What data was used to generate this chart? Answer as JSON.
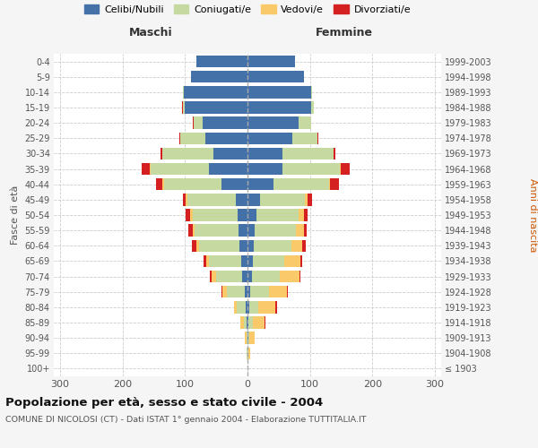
{
  "age_groups": [
    "100+",
    "95-99",
    "90-94",
    "85-89",
    "80-84",
    "75-79",
    "70-74",
    "65-69",
    "60-64",
    "55-59",
    "50-54",
    "45-49",
    "40-44",
    "35-39",
    "30-34",
    "25-29",
    "20-24",
    "15-19",
    "10-14",
    "5-9",
    "0-4"
  ],
  "birth_years": [
    "≤ 1903",
    "1904-1908",
    "1909-1913",
    "1914-1918",
    "1919-1923",
    "1924-1928",
    "1929-1933",
    "1934-1938",
    "1939-1943",
    "1944-1948",
    "1949-1953",
    "1954-1958",
    "1959-1963",
    "1964-1968",
    "1969-1973",
    "1974-1978",
    "1979-1983",
    "1984-1988",
    "1989-1993",
    "1994-1998",
    "1999-2003"
  ],
  "maschi_celibi": [
    0,
    0,
    0,
    1,
    3,
    5,
    8,
    10,
    13,
    14,
    16,
    18,
    42,
    62,
    55,
    68,
    72,
    100,
    102,
    91,
    82
  ],
  "maschi_coniugati": [
    0,
    1,
    2,
    5,
    14,
    28,
    42,
    52,
    65,
    70,
    72,
    78,
    92,
    93,
    82,
    40,
    14,
    4,
    2,
    0,
    0
  ],
  "maschi_vedovi": [
    0,
    1,
    3,
    5,
    5,
    7,
    8,
    4,
    4,
    4,
    4,
    3,
    2,
    1,
    0,
    0,
    0,
    0,
    0,
    0,
    0
  ],
  "maschi_divorziati": [
    0,
    0,
    0,
    0,
    0,
    1,
    2,
    5,
    7,
    7,
    7,
    5,
    10,
    14,
    2,
    1,
    1,
    1,
    0,
    0,
    0
  ],
  "femmine_nubili": [
    0,
    0,
    1,
    1,
    3,
    5,
    7,
    9,
    10,
    12,
    14,
    20,
    42,
    56,
    56,
    72,
    82,
    102,
    102,
    90,
    76
  ],
  "femmine_coniugate": [
    0,
    1,
    2,
    8,
    14,
    30,
    44,
    50,
    60,
    65,
    68,
    72,
    88,
    92,
    82,
    40,
    20,
    4,
    2,
    0,
    0
  ],
  "femmine_vedove": [
    0,
    3,
    8,
    18,
    28,
    28,
    32,
    26,
    18,
    14,
    9,
    4,
    2,
    1,
    0,
    0,
    0,
    0,
    0,
    0,
    0
  ],
  "femmine_divorziate": [
    0,
    0,
    1,
    1,
    2,
    2,
    2,
    2,
    5,
    4,
    5,
    8,
    14,
    14,
    3,
    1,
    0,
    0,
    0,
    0,
    0
  ],
  "colors": {
    "celibi": "#4472a8",
    "coniugati": "#c5d9a0",
    "vedovi": "#fac96a",
    "divorziati": "#d42020"
  },
  "xticks": [
    -300,
    -200,
    -100,
    0,
    100,
    200,
    300
  ],
  "xtick_labels": [
    "300",
    "200",
    "100",
    "0",
    "100",
    "200",
    "300"
  ],
  "legend_labels": [
    "Celibi/Nubili",
    "Coniugati/e",
    "Vedovi/e",
    "Divorziati/e"
  ],
  "title": "Popolazione per età, sesso e stato civile - 2004",
  "subtitle": "COMUNE DI NICOLOSI (CT) - Dati ISTAT 1° gennaio 2004 - Elaborazione TUTTITALIA.IT",
  "ylabel_left": "Fasce di età",
  "ylabel_right": "Anni di nascita",
  "label_maschi": "Maschi",
  "label_femmine": "Femmine",
  "background_color": "#f5f5f5",
  "plot_background": "#ffffff",
  "anni_nascita_color": "#cc5500",
  "axis_label_color": "#555555",
  "title_color": "#111111",
  "subtitle_color": "#555555",
  "grid_color": "#cccccc"
}
